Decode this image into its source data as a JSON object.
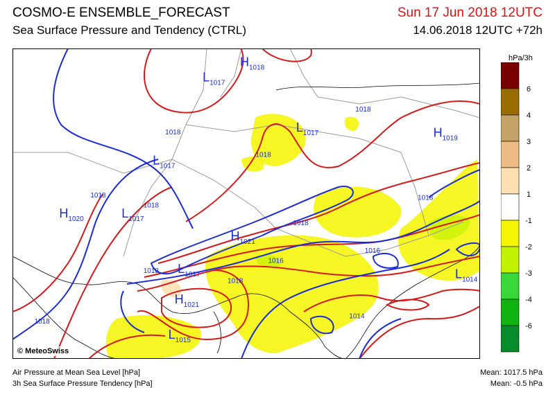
{
  "header": {
    "title": "COSMO-E ENSEMBLE_FORECAST",
    "subtitle": "Sea Surface Pressure and Tendency (CTRL)",
    "valid_time": "Sun 17 Jun 2018 12UTC",
    "run_time": "14.06.2018 12UTC +72h"
  },
  "colors": {
    "pressure_contour": "#d81818",
    "pressure_contour_alt": "#1a2bd8",
    "pressure_labels": "#1a2bd8",
    "borders": "#9a9a9a",
    "coastline": "#000000"
  },
  "map": {
    "centers": [
      {
        "type": "H",
        "value": "1018",
        "lon": 8.3,
        "lat": 50.4
      },
      {
        "type": "L",
        "value": "1017",
        "lon": 7.1,
        "lat": 49.8
      },
      {
        "type": "L",
        "value": "1017",
        "lon": 10.1,
        "lat": 47.8
      },
      {
        "type": "L",
        "value": "1017",
        "lon": 5.5,
        "lat": 46.5
      },
      {
        "type": "H",
        "value": "1019",
        "lon": 14.5,
        "lat": 47.6
      },
      {
        "type": "H",
        "value": "1020",
        "lon": 2.5,
        "lat": 44.4
      },
      {
        "type": "L",
        "value": "1017",
        "lon": 4.5,
        "lat": 44.4
      },
      {
        "type": "H",
        "value": "1021",
        "lon": 8.0,
        "lat": 43.5
      },
      {
        "type": "L",
        "value": "1017",
        "lon": 6.3,
        "lat": 42.2
      },
      {
        "type": "H",
        "value": "1021",
        "lon": 6.2,
        "lat": 41.0
      },
      {
        "type": "L",
        "value": "1015",
        "lon": 6.0,
        "lat": 39.6
      },
      {
        "type": "L",
        "value": "1014",
        "lon": 15.2,
        "lat": 42.0
      }
    ],
    "contour_labels": [
      {
        "value": "1018",
        "lon": 5.9,
        "lat": 47.7
      },
      {
        "value": "1018",
        "lon": 12.0,
        "lat": 48.6
      },
      {
        "value": "1018",
        "lon": 8.8,
        "lat": 46.8
      },
      {
        "value": "1018",
        "lon": 3.5,
        "lat": 45.2
      },
      {
        "value": "1018",
        "lon": 5.2,
        "lat": 44.8
      },
      {
        "value": "1018",
        "lon": 10.0,
        "lat": 44.1
      },
      {
        "value": "1018",
        "lon": 14.0,
        "lat": 45.1
      },
      {
        "value": "1018",
        "lon": 5.2,
        "lat": 42.2
      },
      {
        "value": "1018",
        "lon": 7.9,
        "lat": 41.8
      },
      {
        "value": "1018",
        "lon": 1.7,
        "lat": 40.2
      },
      {
        "value": "1016",
        "lon": 9.2,
        "lat": 42.6
      },
      {
        "value": "1016",
        "lon": 12.3,
        "lat": 43.0
      },
      {
        "value": "1014",
        "lon": 11.8,
        "lat": 40.4
      }
    ]
  },
  "legend": {
    "unit": "hPa/3h",
    "bins": [
      {
        "color": "#7a0000",
        "label": "6"
      },
      {
        "color": "#9a6d00",
        "label": "4"
      },
      {
        "color": "#c4a268",
        "label": "3"
      },
      {
        "color": "#ecbc84",
        "label": "2"
      },
      {
        "color": "#fde0b2",
        "label": "1"
      },
      {
        "color": "#ffffff",
        "label": "-1"
      },
      {
        "color": "#f5f500",
        "label": "-2"
      },
      {
        "color": "#c3f200",
        "label": "-3"
      },
      {
        "color": "#38d838",
        "label": "-4"
      },
      {
        "color": "#10b410",
        "label": "-6"
      },
      {
        "color": "#068c2a",
        "label": ""
      }
    ]
  },
  "footer": {
    "left_line1": "Air Pressure at Mean Sea Level [hPa]",
    "left_line2": "3h Sea Surface Pressure Tendency [hPa]",
    "mean_pressure": "Mean: 1017.5 hPa",
    "mean_tendency": "Mean:   -0.5 hPa",
    "copyright": "© MeteoSwiss"
  }
}
